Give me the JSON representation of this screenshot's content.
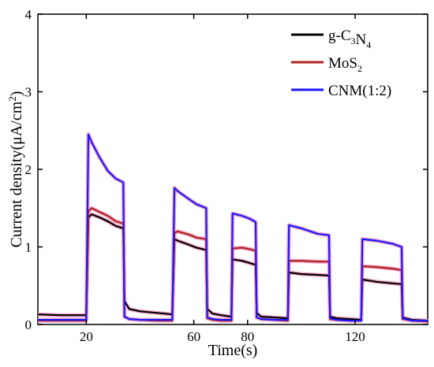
{
  "chart_data": {
    "type": "line",
    "xlabel": "Time(s)",
    "ylabel": "Current density(μA/cm²)",
    "ylabel_parts": {
      "main": "Current density(μA/cm",
      "sup": "2",
      "close": ")"
    },
    "xlim": [
      2,
      147
    ],
    "ylim": [
      0,
      4
    ],
    "x_ticks": [
      20,
      60,
      80,
      120
    ],
    "y_ticks": [
      0,
      1,
      2,
      3,
      4
    ],
    "grid": false,
    "legend_position": "top-right",
    "series": [
      {
        "name": "g-C3N4",
        "legend": {
          "main": "g-C",
          "sub1": "3",
          "mid": "N",
          "sub2": "4"
        },
        "color": "#000000",
        "x": [
          2,
          10,
          20,
          20.8,
          22,
          25,
          28,
          31,
          33.8,
          34.2,
          36,
          40,
          46,
          52,
          52.8,
          54,
          58,
          61,
          64.6,
          65,
          67,
          70,
          74,
          74.4,
          78,
          81,
          83,
          83.4,
          85,
          90,
          95,
          95.4,
          100,
          106,
          110.3,
          110.7,
          113,
          118,
          122.3,
          122.7,
          128,
          134,
          137.3,
          137.7,
          141,
          147
        ],
        "y": [
          0.13,
          0.12,
          0.12,
          1.38,
          1.42,
          1.38,
          1.33,
          1.27,
          1.24,
          0.3,
          0.2,
          0.17,
          0.15,
          0.13,
          1.1,
          1.08,
          1.03,
          0.99,
          0.96,
          0.2,
          0.14,
          0.12,
          0.1,
          0.84,
          0.82,
          0.79,
          0.77,
          0.15,
          0.1,
          0.09,
          0.08,
          0.67,
          0.65,
          0.64,
          0.63,
          0.1,
          0.08,
          0.07,
          0.06,
          0.58,
          0.55,
          0.53,
          0.52,
          0.09,
          0.06,
          0.05
        ]
      },
      {
        "name": "MoS2",
        "legend": {
          "main": "MoS",
          "sub1": "2",
          "mid": "",
          "sub2": ""
        },
        "color": "#b22222",
        "x": [
          2,
          10,
          20,
          20.8,
          22,
          25,
          28,
          31,
          33.8,
          34.2,
          36,
          40,
          46,
          52,
          52.8,
          54,
          58,
          61,
          64.6,
          65,
          67,
          70,
          74,
          74.4,
          78,
          81,
          83,
          83.4,
          85,
          90,
          95,
          95.4,
          100,
          106,
          110.3,
          110.7,
          113,
          118,
          122.3,
          122.7,
          128,
          134,
          137.3,
          137.7,
          141,
          147
        ],
        "y": [
          0.05,
          0.05,
          0.05,
          1.46,
          1.5,
          1.45,
          1.4,
          1.33,
          1.3,
          0.1,
          0.07,
          0.06,
          0.05,
          0.05,
          1.18,
          1.2,
          1.16,
          1.12,
          1.1,
          0.08,
          0.06,
          0.05,
          0.05,
          0.98,
          0.99,
          0.97,
          0.95,
          0.09,
          0.07,
          0.06,
          0.05,
          0.82,
          0.82,
          0.81,
          0.81,
          0.07,
          0.06,
          0.05,
          0.05,
          0.75,
          0.74,
          0.72,
          0.7,
          0.07,
          0.05,
          0.04
        ]
      },
      {
        "name": "CNM(1:2)",
        "legend": {
          "main": "CNM(1:2)",
          "sub1": "",
          "mid": "",
          "sub2": ""
        },
        "color": "#1a1aff",
        "x": [
          2,
          10,
          20,
          20.8,
          22,
          25,
          28,
          31,
          33.8,
          34.2,
          36,
          40,
          46,
          52,
          52.8,
          54,
          58,
          61,
          64.6,
          65,
          67,
          70,
          74,
          74.4,
          78,
          81,
          83,
          83.4,
          85,
          90,
          95,
          95.4,
          100,
          106,
          110.3,
          110.7,
          113,
          118,
          122.3,
          122.7,
          128,
          134,
          137.3,
          137.7,
          141,
          147
        ],
        "y": [
          0.06,
          0.06,
          0.06,
          2.45,
          2.35,
          2.15,
          1.98,
          1.88,
          1.83,
          0.1,
          0.07,
          0.06,
          0.06,
          0.06,
          1.76,
          1.72,
          1.62,
          1.55,
          1.5,
          0.09,
          0.07,
          0.06,
          0.06,
          1.43,
          1.4,
          1.36,
          1.32,
          0.09,
          0.07,
          0.06,
          0.06,
          1.28,
          1.24,
          1.17,
          1.15,
          0.08,
          0.06,
          0.05,
          0.05,
          1.1,
          1.08,
          1.04,
          1.0,
          0.08,
          0.05,
          0.05
        ]
      }
    ]
  }
}
